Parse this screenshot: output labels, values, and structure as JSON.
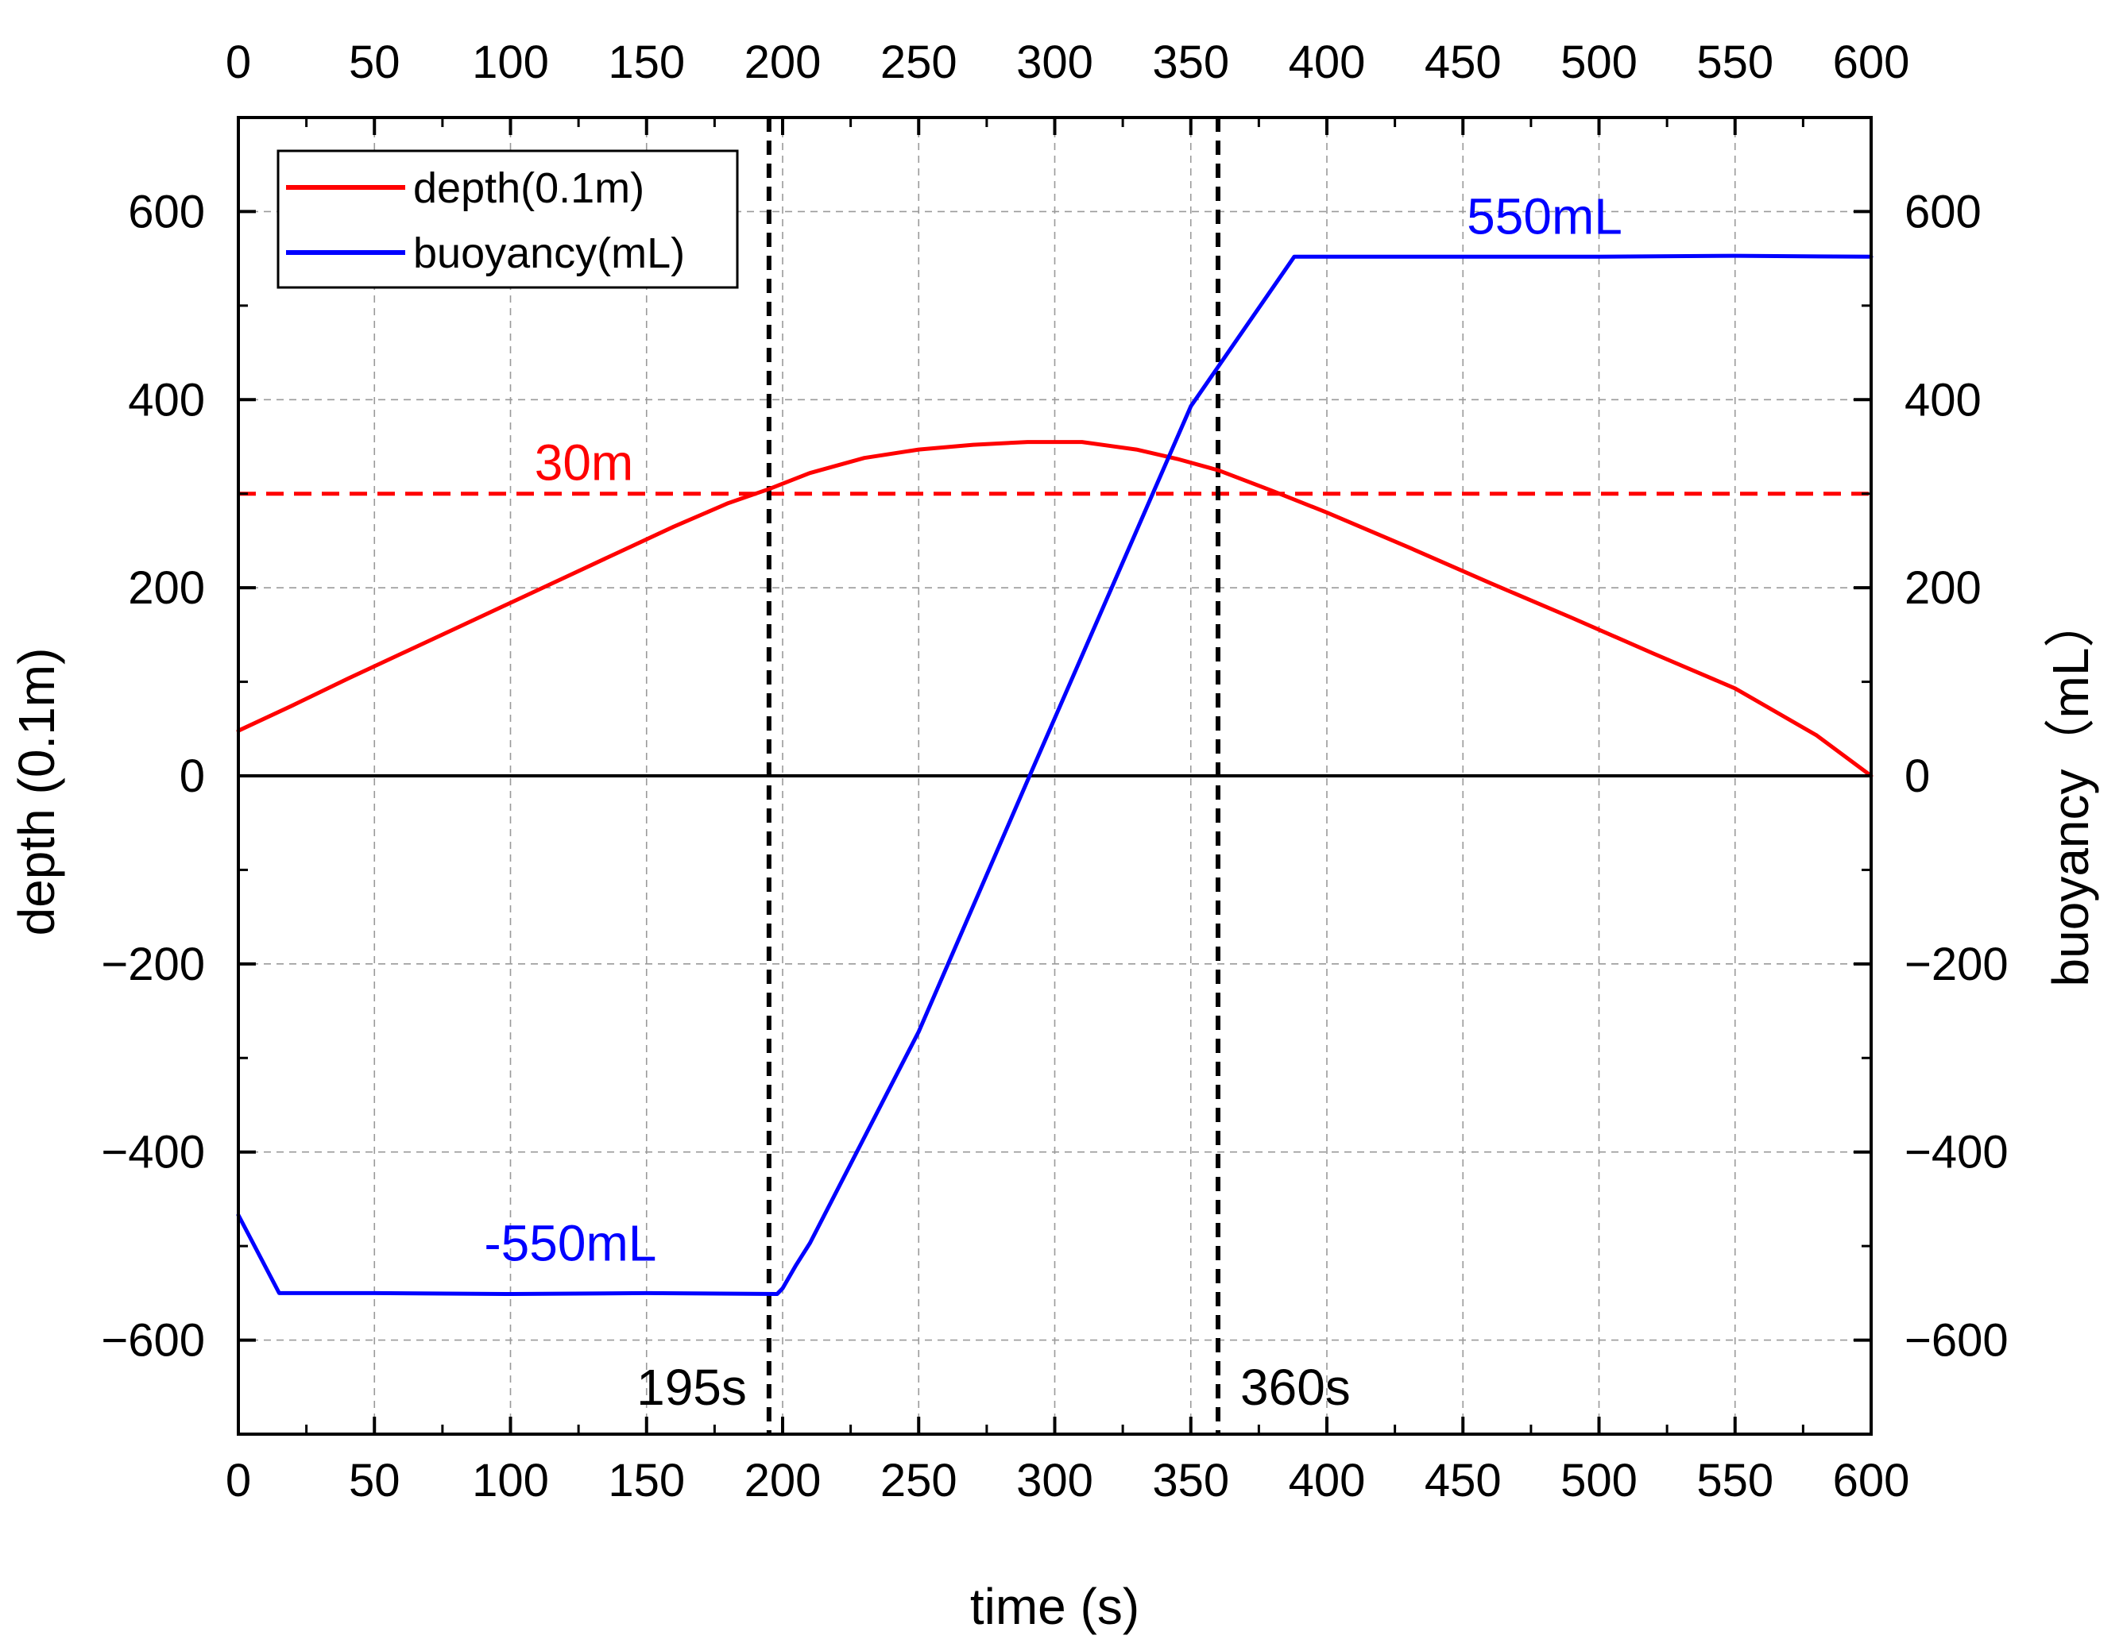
{
  "chart_data": {
    "type": "line",
    "xlabel": "time (s)",
    "ylabel_left": "depth (0.1m)",
    "ylabel_right": "buoyancy（mL）",
    "xlim": [
      0,
      600
    ],
    "ylim": [
      -700,
      700
    ],
    "x_ticks": [
      0,
      50,
      100,
      150,
      200,
      250,
      300,
      350,
      400,
      450,
      500,
      550,
      600
    ],
    "x_tick_labels": [
      "0",
      "50",
      "100",
      "150",
      "200",
      "250",
      "300",
      "350",
      "400",
      "450",
      "500",
      "550",
      "600"
    ],
    "y_ticks": [
      600,
      400,
      200,
      0,
      -200,
      -400,
      -600
    ],
    "y_tick_labels_left": [
      "600",
      "400",
      "200",
      "0",
      "−200",
      "−400",
      "−600"
    ],
    "y_tick_labels_right": [
      "600",
      "400",
      "200",
      "0",
      "−200",
      "−400",
      "−600"
    ],
    "grid": true,
    "legend_position": "top-left",
    "series": [
      {
        "name": "depth(0.1m)",
        "color": "#ff0000",
        "x": [
          0,
          20,
          40,
          60,
          80,
          100,
          120,
          140,
          160,
          180,
          195,
          210,
          230,
          250,
          270,
          290,
          310,
          330,
          345,
          360,
          380,
          400,
          430,
          460,
          490,
          520,
          550,
          580,
          600
        ],
        "y": [
          48,
          75,
          103,
          130,
          157,
          184,
          211,
          238,
          265,
          290,
          305,
          322,
          338,
          347,
          352,
          355,
          355,
          347,
          337,
          325,
          303,
          280,
          243,
          205,
          168,
          130,
          93,
          43,
          0
        ]
      },
      {
        "name": "buoyancy(mL)",
        "color": "#0000ff",
        "x": [
          0,
          15,
          50,
          100,
          150,
          198,
          200,
          205,
          210,
          250,
          290,
          350,
          388,
          390,
          450,
          500,
          550,
          600
        ],
        "y": [
          -467,
          -550,
          -550,
          -551,
          -550,
          -551,
          -545,
          -520,
          -497,
          -272,
          -5,
          393,
          552,
          552,
          552,
          552,
          553,
          552
        ]
      }
    ],
    "reference_lines": [
      {
        "type": "horizontal",
        "y": 300,
        "color": "#ff0000",
        "style": "dashed",
        "label": "30m"
      },
      {
        "type": "horizontal",
        "y": 0,
        "color": "#000000",
        "style": "solid"
      },
      {
        "type": "vertical",
        "x": 195,
        "color": "#000000",
        "style": "dashed",
        "label": "195s"
      },
      {
        "type": "vertical",
        "x": 360,
        "color": "#000000",
        "style": "dashed",
        "label": "360s"
      }
    ],
    "annotations": [
      {
        "text": "550mL",
        "x": 480,
        "y": 595,
        "color": "#0000ff"
      },
      {
        "text": "-550mL",
        "x": 122,
        "y": -497,
        "color": "#0000ff"
      },
      {
        "text": "30m",
        "x": 127,
        "y": 333,
        "color": "#ff0000"
      }
    ]
  }
}
